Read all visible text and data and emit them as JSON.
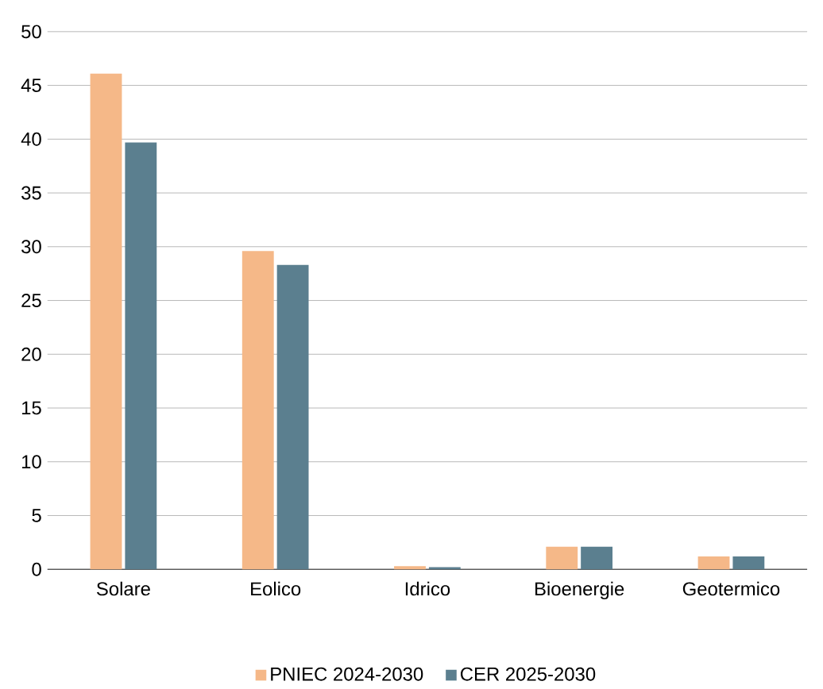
{
  "chart_data": {
    "type": "bar",
    "categories": [
      "Solare",
      "Eolico",
      "Idrico",
      "Bioenergie",
      "Geotermico"
    ],
    "series": [
      {
        "name": "PNIEC 2024-2030",
        "color": "#f5b888",
        "values": [
          46.1,
          29.6,
          0.3,
          2.1,
          1.2
        ]
      },
      {
        "name": "CER 2025-2030",
        "color": "#5b7f8f",
        "values": [
          39.7,
          28.3,
          0.2,
          2.1,
          1.2
        ]
      }
    ],
    "ylim": [
      0,
      50
    ],
    "yticks": [
      0,
      5,
      10,
      15,
      20,
      25,
      30,
      35,
      40,
      45,
      50
    ],
    "grid": "y",
    "legend": "bottom"
  }
}
